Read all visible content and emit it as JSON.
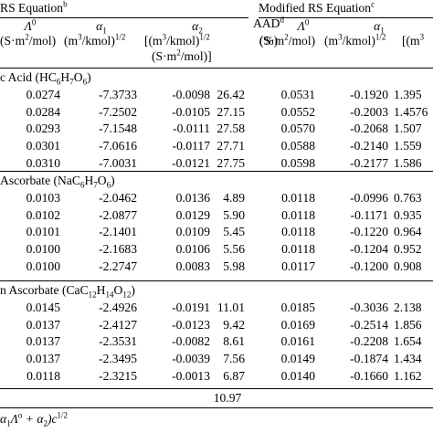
{
  "header": {
    "left_group": "RS Equation",
    "left_group_note": "b",
    "right_group": "Modified RS Equation",
    "right_group_note": "c",
    "c1_name": "Λ",
    "c1_sup": "0",
    "c1_unit": "(S·m",
    "c1_unit_b": "/mol)",
    "c2_name": "α",
    "c2_sub": "1",
    "c2_unit": "(m",
    "c2_unit_b": "/kmol)",
    "c2_unit_sup": "1/2",
    "c3_name": "α",
    "c3_sub": "2",
    "c3_unit": "[(m",
    "c3_unit_b": "/kmol)",
    "c3_unit_sup": "1/2",
    "c3_unit2": "(S·m",
    "c3_unit2_b": "/mol)]",
    "c4_name": "AAD",
    "c4_note": "d",
    "c4_unit": "(%)",
    "c5_name": "Λ",
    "c5_sup": "0",
    "c5_unit": "(S·m",
    "c5_unit_b": "/mol)",
    "c6_name": "α",
    "c6_sub": "1",
    "c6_unit": "(m",
    "c6_unit_b": "/kmol)",
    "c6_unit_sup": "1/2",
    "c7_unit": "[(m"
  },
  "groups": [
    {
      "title": "c Acid (HC",
      "formula_tail": [
        [
          "6",
          "H"
        ],
        [
          "7",
          "O"
        ],
        [
          "6",
          ")"
        ]
      ],
      "rows": [
        [
          "0.0274",
          "-7.3733",
          "-0.0098",
          "26.42",
          "0.0531",
          "-0.1920",
          "1.395"
        ],
        [
          "0.0284",
          "-7.2502",
          "-0.0105",
          "27.15",
          "0.0552",
          "-0.2003",
          "1.4576"
        ],
        [
          "0.0293",
          "-7.1548",
          "-0.0111",
          "27.58",
          "0.0570",
          "-0.2068",
          "1.507"
        ],
        [
          "0.0301",
          "-7.0616",
          "-0.0117",
          "27.71",
          "0.0588",
          "-0.2140",
          "1.559"
        ],
        [
          "0.0310",
          "-7.0031",
          "-0.0121",
          "27.75",
          "0.0598",
          "-0.2177",
          "1.586"
        ]
      ]
    },
    {
      "title": "Ascorbate (NaC",
      "formula_tail": [
        [
          "6",
          "H"
        ],
        [
          "7",
          "O"
        ],
        [
          "6",
          ")"
        ]
      ],
      "rows": [
        [
          "0.0103",
          "-2.0462",
          "0.0136",
          "4.89",
          "0.0118",
          "-0.0996",
          "0.763"
        ],
        [
          "0.0102",
          "-2.0877",
          "0.0129",
          "5.90",
          "0.0118",
          "-0.1171",
          "0.935"
        ],
        [
          "0.0101",
          "-2.1401",
          "0.0109",
          "5.45",
          "0.0118",
          "-0.1220",
          "0.964"
        ],
        [
          "0.0100",
          "-2.1683",
          "0.0106",
          "5.56",
          "0.0118",
          "-0.1204",
          "0.952"
        ],
        [
          "0.0100",
          "-2.2747",
          "0.0083",
          "5.98",
          "0.0117",
          "-0.1200",
          "0.908"
        ]
      ]
    },
    {
      "title": "n Ascorbate (CaC",
      "formula_tail": [
        [
          "12",
          "H"
        ],
        [
          "14",
          "O"
        ],
        [
          "12",
          ")"
        ]
      ],
      "rows": [
        [
          "0.0145",
          "-2.4926",
          "-0.0191",
          "11.01",
          "0.0185",
          "-0.3036",
          "2.138"
        ],
        [
          "0.0137",
          "-2.4127",
          "-0.0123",
          "9.42",
          "0.0169",
          "-0.2514",
          "1.856"
        ],
        [
          "0.0137",
          "-2.3531",
          "-0.0082",
          "8.61",
          "0.0161",
          "-0.2208",
          "1.654"
        ],
        [
          "0.0137",
          "-2.3495",
          "-0.0039",
          "7.56",
          "0.0149",
          "-0.1874",
          "1.434"
        ],
        [
          "0.0118",
          "-2.3215",
          "-0.0013",
          "6.87",
          "0.0140",
          "-0.1660",
          "1.162"
        ]
      ]
    }
  ],
  "total_aad": "10.97",
  "footnote_formula": {
    "p1": "α",
    "p1_sub": "1",
    "p2": "Λ",
    "p2_sup": "o",
    "p3": " + α",
    "p3_sub": "2",
    "p4": ")c",
    "p4_sup": "1/2"
  }
}
